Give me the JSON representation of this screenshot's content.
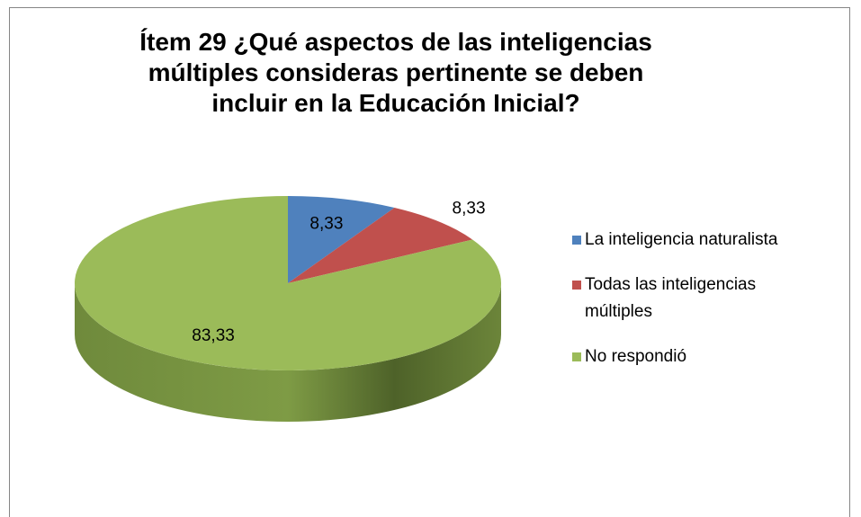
{
  "chart_data": {
    "type": "pie",
    "title": "Ítem 29 ¿Qué aspectos de las inteligencias múltiples consideras pertinente se deben incluir en la Educación Inicial?",
    "categories": [
      "La inteligencia naturalista",
      "Todas las inteligencias múltiples",
      "No respondió"
    ],
    "values": [
      8.33,
      8.33,
      83.33
    ],
    "value_labels": [
      "8,33",
      "8,33",
      "83,33"
    ],
    "colors": [
      "#4f81bd",
      "#c0504d",
      "#9bbb59"
    ],
    "legend": "right"
  }
}
